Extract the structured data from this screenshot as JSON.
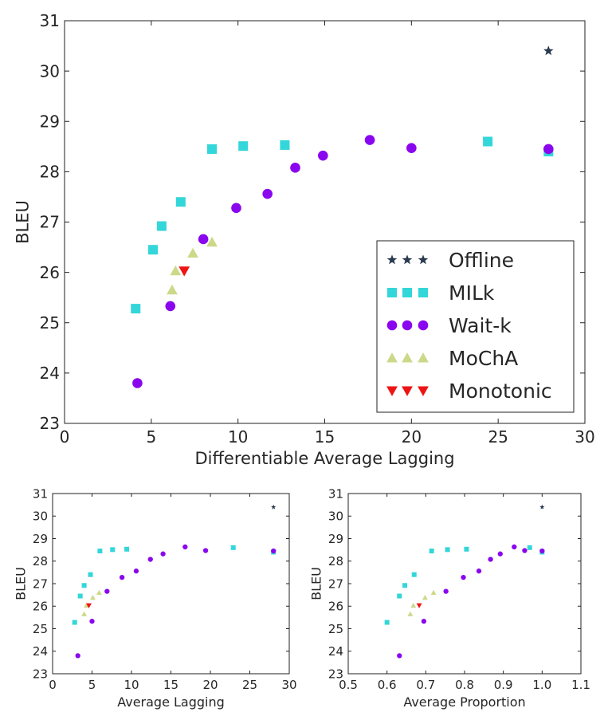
{
  "colors": {
    "Offline": "#2a3a4f",
    "MILk": "#33d6d9",
    "Wait-k": "#8a06ee",
    "MoChA": "#cdd889",
    "Monotonic": "#ee1414"
  },
  "chart_data": [
    {
      "id": "dal",
      "type": "scatter",
      "xlabel": "Differentiable Average Lagging",
      "ylabel": "BLEU",
      "xlim": [
        0,
        30
      ],
      "ylim": [
        23,
        31
      ],
      "xticks": [
        0,
        5,
        10,
        15,
        20,
        25,
        30
      ],
      "yticks": [
        23,
        24,
        25,
        26,
        27,
        28,
        29,
        30,
        31
      ],
      "legend": {
        "position": "lower-right",
        "entries": [
          "Offline",
          "MILk",
          "Wait-k",
          "MoChA",
          "Monotonic"
        ]
      },
      "series": [
        {
          "name": "Offline",
          "marker": "star",
          "points": [
            [
              27.9,
              30.4
            ]
          ]
        },
        {
          "name": "MILk",
          "marker": "square",
          "points": [
            [
              4.1,
              25.28
            ],
            [
              5.1,
              26.45
            ],
            [
              5.6,
              26.92
            ],
            [
              6.7,
              27.4
            ],
            [
              8.5,
              28.45
            ],
            [
              10.3,
              28.51
            ],
            [
              12.7,
              28.53
            ],
            [
              24.4,
              28.6
            ],
            [
              27.9,
              28.4
            ]
          ]
        },
        {
          "name": "Wait-k",
          "marker": "circle",
          "points": [
            [
              4.2,
              23.8
            ],
            [
              6.1,
              25.33
            ],
            [
              8.0,
              26.66
            ],
            [
              9.9,
              27.28
            ],
            [
              11.7,
              27.56
            ],
            [
              13.3,
              28.08
            ],
            [
              14.9,
              28.32
            ],
            [
              17.6,
              28.63
            ],
            [
              20.0,
              28.47
            ],
            [
              27.9,
              28.45
            ]
          ]
        },
        {
          "name": "MoChA",
          "marker": "triangle-up",
          "points": [
            [
              6.2,
              25.65
            ],
            [
              6.4,
              26.03
            ],
            [
              7.4,
              26.38
            ],
            [
              8.5,
              26.6
            ]
          ]
        },
        {
          "name": "Monotonic",
          "marker": "triangle-down",
          "points": [
            [
              6.9,
              26.03
            ]
          ]
        }
      ]
    },
    {
      "id": "al",
      "type": "scatter",
      "xlabel": "Average Lagging",
      "ylabel": "BLEU",
      "xlim": [
        0,
        30
      ],
      "ylim": [
        23,
        31
      ],
      "xticks": [
        0,
        5,
        10,
        15,
        20,
        25,
        30
      ],
      "yticks": [
        23,
        24,
        25,
        26,
        27,
        28,
        29,
        30,
        31
      ],
      "series": [
        {
          "name": "Offline",
          "marker": "star",
          "points": [
            [
              28.0,
              30.4
            ]
          ]
        },
        {
          "name": "MILk",
          "marker": "square",
          "points": [
            [
              2.8,
              25.28
            ],
            [
              3.5,
              26.45
            ],
            [
              4.0,
              26.92
            ],
            [
              4.8,
              27.4
            ],
            [
              6.0,
              28.45
            ],
            [
              7.6,
              28.51
            ],
            [
              9.4,
              28.53
            ],
            [
              22.9,
              28.6
            ],
            [
              28.0,
              28.4
            ]
          ]
        },
        {
          "name": "Wait-k",
          "marker": "circle",
          "points": [
            [
              3.2,
              23.8
            ],
            [
              5.0,
              25.33
            ],
            [
              6.9,
              26.66
            ],
            [
              8.8,
              27.28
            ],
            [
              10.6,
              27.56
            ],
            [
              12.4,
              28.08
            ],
            [
              14.0,
              28.32
            ],
            [
              16.8,
              28.63
            ],
            [
              19.4,
              28.47
            ],
            [
              28.0,
              28.45
            ]
          ]
        },
        {
          "name": "MoChA",
          "marker": "triangle-up",
          "points": [
            [
              4.0,
              25.65
            ],
            [
              4.3,
              26.03
            ],
            [
              5.1,
              26.38
            ],
            [
              5.9,
              26.6
            ]
          ]
        },
        {
          "name": "Monotonic",
          "marker": "triangle-down",
          "points": [
            [
              4.6,
              26.03
            ]
          ]
        }
      ]
    },
    {
      "id": "ap",
      "type": "scatter",
      "xlabel": "Average Proportion",
      "ylabel": "BLEU",
      "xlim": [
        0.5,
        1.1
      ],
      "ylim": [
        23,
        31
      ],
      "xticks": [
        0.5,
        0.6,
        0.7,
        0.8,
        0.9,
        1.0,
        1.1
      ],
      "xtick_labels": [
        "0.5",
        "0.6",
        "0.7",
        "0.8",
        "0.9",
        "1.0",
        "1.1"
      ],
      "yticks": [
        23,
        24,
        25,
        26,
        27,
        28,
        29,
        30,
        31
      ],
      "series": [
        {
          "name": "Offline",
          "marker": "star",
          "points": [
            [
              1.0,
              30.4
            ]
          ]
        },
        {
          "name": "MILk",
          "marker": "square",
          "points": [
            [
              0.6,
              25.28
            ],
            [
              0.632,
              26.45
            ],
            [
              0.646,
              26.92
            ],
            [
              0.67,
              27.4
            ],
            [
              0.715,
              28.45
            ],
            [
              0.756,
              28.51
            ],
            [
              0.805,
              28.53
            ],
            [
              0.968,
              28.6
            ],
            [
              1.0,
              28.4
            ]
          ]
        },
        {
          "name": "Wait-k",
          "marker": "circle",
          "points": [
            [
              0.632,
              23.8
            ],
            [
              0.695,
              25.33
            ],
            [
              0.752,
              26.66
            ],
            [
              0.797,
              27.28
            ],
            [
              0.837,
              27.56
            ],
            [
              0.867,
              28.08
            ],
            [
              0.892,
              28.32
            ],
            [
              0.928,
              28.63
            ],
            [
              0.955,
              28.47
            ],
            [
              1.0,
              28.45
            ]
          ]
        },
        {
          "name": "MoChA",
          "marker": "triangle-up",
          "points": [
            [
              0.66,
              25.65
            ],
            [
              0.668,
              26.03
            ],
            [
              0.698,
              26.38
            ],
            [
              0.72,
              26.6
            ]
          ]
        },
        {
          "name": "Monotonic",
          "marker": "triangle-down",
          "points": [
            [
              0.683,
              26.03
            ]
          ]
        }
      ]
    }
  ]
}
